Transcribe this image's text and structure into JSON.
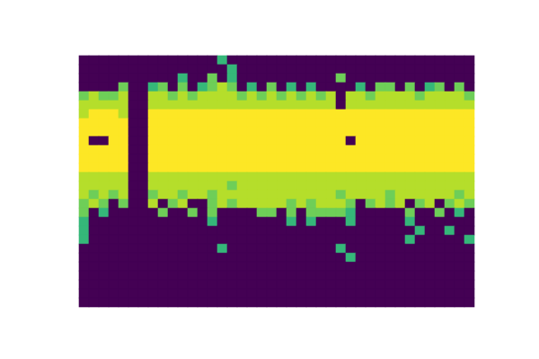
{
  "chart_data": {
    "type": "heatmap",
    "color": "viridis",
    "tick_labels": false,
    "zlim": [
      0,
      9
    ],
    "cells": [
      [
        0,
        0,
        0,
        0,
        0,
        0,
        0,
        0,
        0,
        0,
        0,
        0,
        0,
        0,
        6,
        0,
        0,
        0,
        0,
        0,
        0,
        0,
        0,
        0,
        0,
        0,
        0,
        0,
        0,
        0,
        0,
        0,
        0,
        0,
        0,
        0,
        0,
        0,
        0,
        0
      ],
      [
        0,
        0,
        0,
        0,
        0,
        0,
        0,
        0,
        0,
        0,
        0,
        0,
        0,
        0,
        0,
        6,
        0,
        0,
        0,
        0,
        0,
        0,
        0,
        0,
        0,
        0,
        0,
        0,
        0,
        0,
        0,
        0,
        0,
        0,
        0,
        0,
        0,
        0,
        0,
        0
      ],
      [
        0,
        0,
        0,
        0,
        0,
        0,
        0,
        0,
        0,
        0,
        6,
        0,
        0,
        7,
        0,
        6,
        0,
        0,
        0,
        0,
        0,
        0,
        0,
        0,
        0,
        0,
        7,
        0,
        0,
        0,
        0,
        0,
        0,
        0,
        0,
        0,
        0,
        0,
        0,
        0
      ],
      [
        0,
        0,
        0,
        0,
        7,
        0,
        0,
        6,
        7,
        0,
        7,
        0,
        6,
        7,
        8,
        7,
        0,
        6,
        0,
        7,
        0,
        6,
        0,
        6,
        0,
        0,
        0,
        0,
        6,
        0,
        7,
        7,
        0,
        7,
        0,
        6,
        7,
        0,
        7,
        0
      ],
      [
        7,
        8,
        7,
        7,
        8,
        0,
        0,
        8,
        8,
        7,
        8,
        7,
        8,
        8,
        8,
        8,
        7,
        8,
        7,
        8,
        7,
        8,
        7,
        8,
        7,
        8,
        0,
        8,
        8,
        7,
        8,
        8,
        8,
        8,
        7,
        8,
        8,
        8,
        8,
        7
      ],
      [
        8,
        8,
        8,
        8,
        8,
        0,
        0,
        8,
        8,
        8,
        8,
        8,
        8,
        8,
        8,
        8,
        8,
        8,
        8,
        8,
        8,
        8,
        8,
        8,
        8,
        8,
        0,
        8,
        8,
        8,
        8,
        8,
        8,
        8,
        8,
        8,
        8,
        8,
        8,
        8
      ],
      [
        8,
        9,
        9,
        9,
        8,
        0,
        0,
        9,
        9,
        9,
        9,
        9,
        9,
        9,
        9,
        9,
        9,
        9,
        9,
        9,
        9,
        9,
        9,
        9,
        9,
        9,
        9,
        9,
        9,
        9,
        9,
        9,
        9,
        9,
        9,
        9,
        9,
        9,
        9,
        9
      ],
      [
        9,
        9,
        9,
        9,
        9,
        0,
        0,
        9,
        9,
        9,
        9,
        9,
        9,
        9,
        9,
        9,
        9,
        9,
        9,
        9,
        9,
        9,
        9,
        9,
        9,
        9,
        9,
        9,
        9,
        9,
        9,
        9,
        9,
        9,
        9,
        9,
        9,
        9,
        9,
        9
      ],
      [
        9,
        9,
        9,
        9,
        9,
        0,
        0,
        9,
        9,
        9,
        9,
        9,
        9,
        9,
        9,
        9,
        9,
        9,
        9,
        9,
        9,
        9,
        9,
        9,
        9,
        9,
        9,
        9,
        9,
        9,
        9,
        9,
        9,
        9,
        9,
        9,
        9,
        9,
        9,
        9
      ],
      [
        9,
        0,
        0,
        9,
        9,
        0,
        0,
        9,
        9,
        9,
        9,
        9,
        9,
        9,
        9,
        9,
        9,
        9,
        9,
        9,
        9,
        9,
        9,
        9,
        9,
        9,
        9,
        0,
        9,
        9,
        9,
        9,
        9,
        9,
        9,
        9,
        9,
        9,
        9,
        9
      ],
      [
        9,
        9,
        9,
        9,
        9,
        0,
        0,
        9,
        9,
        9,
        9,
        9,
        9,
        9,
        9,
        9,
        9,
        9,
        9,
        9,
        9,
        9,
        9,
        9,
        9,
        9,
        9,
        9,
        9,
        9,
        9,
        9,
        9,
        9,
        9,
        9,
        9,
        9,
        9,
        9
      ],
      [
        9,
        9,
        9,
        9,
        9,
        0,
        0,
        9,
        9,
        9,
        9,
        9,
        9,
        9,
        9,
        9,
        9,
        9,
        9,
        9,
        9,
        9,
        9,
        9,
        9,
        9,
        9,
        9,
        9,
        9,
        9,
        9,
        9,
        9,
        9,
        9,
        9,
        9,
        9,
        9
      ],
      [
        9,
        9,
        9,
        9,
        9,
        0,
        0,
        9,
        9,
        9,
        9,
        9,
        9,
        9,
        9,
        9,
        9,
        9,
        9,
        9,
        9,
        9,
        9,
        9,
        9,
        9,
        9,
        9,
        9,
        9,
        9,
        9,
        9,
        9,
        9,
        9,
        9,
        9,
        9,
        9
      ],
      [
        8,
        8,
        8,
        8,
        8,
        0,
        0,
        8,
        8,
        8,
        8,
        8,
        8,
        8,
        8,
        8,
        8,
        8,
        8,
        8,
        8,
        8,
        8,
        8,
        8,
        8,
        8,
        8,
        8,
        8,
        8,
        8,
        8,
        8,
        8,
        8,
        8,
        8,
        8,
        8
      ],
      [
        8,
        8,
        8,
        8,
        8,
        0,
        0,
        8,
        8,
        8,
        8,
        8,
        8,
        8,
        8,
        7,
        8,
        8,
        8,
        8,
        8,
        8,
        8,
        8,
        8,
        8,
        8,
        8,
        8,
        8,
        8,
        8,
        8,
        8,
        8,
        8,
        8,
        8,
        8,
        8
      ],
      [
        8,
        7,
        8,
        7,
        8,
        0,
        0,
        7,
        8,
        8,
        7,
        8,
        8,
        7,
        8,
        8,
        8,
        8,
        8,
        8,
        8,
        8,
        8,
        8,
        8,
        8,
        7,
        8,
        8,
        8,
        8,
        7,
        8,
        8,
        8,
        8,
        8,
        8,
        7,
        8
      ],
      [
        7,
        8,
        7,
        0,
        7,
        0,
        0,
        8,
        0,
        7,
        8,
        0,
        0,
        7,
        8,
        7,
        8,
        8,
        8,
        8,
        8,
        7,
        8,
        7,
        8,
        8,
        8,
        7,
        0,
        7,
        8,
        7,
        8,
        0,
        7,
        8,
        0,
        7,
        8,
        7
      ],
      [
        7,
        0,
        6,
        0,
        0,
        0,
        0,
        0,
        7,
        0,
        0,
        7,
        0,
        7,
        0,
        0,
        0,
        0,
        7,
        7,
        0,
        7,
        0,
        7,
        7,
        7,
        7,
        6,
        0,
        0,
        0,
        0,
        0,
        7,
        0,
        0,
        7,
        0,
        6,
        0
      ],
      [
        6,
        0,
        0,
        0,
        0,
        0,
        0,
        0,
        0,
        0,
        0,
        0,
        0,
        6,
        0,
        0,
        0,
        0,
        0,
        0,
        0,
        6,
        0,
        6,
        0,
        0,
        0,
        6,
        0,
        0,
        0,
        0,
        0,
        6,
        0,
        0,
        0,
        0,
        0,
        0
      ],
      [
        6,
        0,
        0,
        0,
        0,
        0,
        0,
        0,
        0,
        0,
        0,
        0,
        0,
        0,
        0,
        0,
        0,
        0,
        0,
        0,
        0,
        0,
        0,
        0,
        0,
        0,
        0,
        0,
        0,
        0,
        0,
        0,
        0,
        0,
        6,
        0,
        0,
        6,
        0,
        0
      ],
      [
        6,
        0,
        0,
        0,
        0,
        0,
        0,
        0,
        0,
        0,
        0,
        0,
        0,
        0,
        0,
        0,
        0,
        0,
        0,
        0,
        0,
        0,
        0,
        0,
        0,
        0,
        0,
        0,
        0,
        0,
        0,
        0,
        0,
        6,
        0,
        0,
        0,
        0,
        0,
        6
      ],
      [
        0,
        0,
        0,
        0,
        0,
        0,
        0,
        0,
        0,
        0,
        0,
        0,
        0,
        0,
        6,
        0,
        0,
        0,
        0,
        0,
        0,
        0,
        0,
        0,
        0,
        0,
        6,
        0,
        0,
        0,
        0,
        0,
        0,
        0,
        0,
        0,
        0,
        0,
        0,
        0
      ],
      [
        0,
        0,
        0,
        0,
        0,
        0,
        0,
        0,
        0,
        0,
        0,
        0,
        0,
        0,
        0,
        0,
        0,
        0,
        0,
        0,
        0,
        0,
        0,
        0,
        0,
        0,
        0,
        6,
        0,
        0,
        0,
        0,
        0,
        0,
        0,
        0,
        0,
        0,
        0,
        0
      ],
      [
        0,
        0,
        0,
        0,
        0,
        0,
        0,
        0,
        0,
        0,
        0,
        0,
        0,
        0,
        0,
        0,
        0,
        0,
        0,
        0,
        0,
        0,
        0,
        0,
        0,
        0,
        0,
        0,
        0,
        0,
        0,
        0,
        0,
        0,
        0,
        0,
        0,
        0,
        0,
        0
      ],
      [
        0,
        0,
        0,
        0,
        0,
        0,
        0,
        0,
        0,
        0,
        0,
        0,
        0,
        0,
        0,
        0,
        0,
        0,
        0,
        0,
        0,
        0,
        0,
        0,
        0,
        0,
        0,
        0,
        0,
        0,
        0,
        0,
        0,
        0,
        0,
        0,
        0,
        0,
        0,
        0
      ],
      [
        0,
        0,
        0,
        0,
        0,
        0,
        0,
        0,
        0,
        0,
        0,
        0,
        0,
        0,
        0,
        0,
        0,
        0,
        0,
        0,
        0,
        0,
        0,
        0,
        0,
        0,
        0,
        0,
        0,
        0,
        0,
        0,
        0,
        0,
        0,
        0,
        0,
        0,
        0,
        0
      ],
      [
        0,
        0,
        0,
        0,
        0,
        0,
        0,
        0,
        0,
        0,
        0,
        0,
        0,
        0,
        0,
        0,
        0,
        0,
        0,
        0,
        0,
        0,
        0,
        0,
        0,
        0,
        0,
        0,
        0,
        0,
        0,
        0,
        0,
        0,
        0,
        0,
        0,
        0,
        0,
        0
      ],
      [
        0,
        0,
        0,
        0,
        0,
        0,
        0,
        0,
        0,
        0,
        0,
        0,
        0,
        0,
        0,
        0,
        0,
        0,
        0,
        0,
        0,
        0,
        0,
        0,
        0,
        0,
        0,
        0,
        0,
        0,
        0,
        0,
        0,
        0,
        0,
        0,
        0,
        0,
        0,
        0
      ]
    ]
  }
}
